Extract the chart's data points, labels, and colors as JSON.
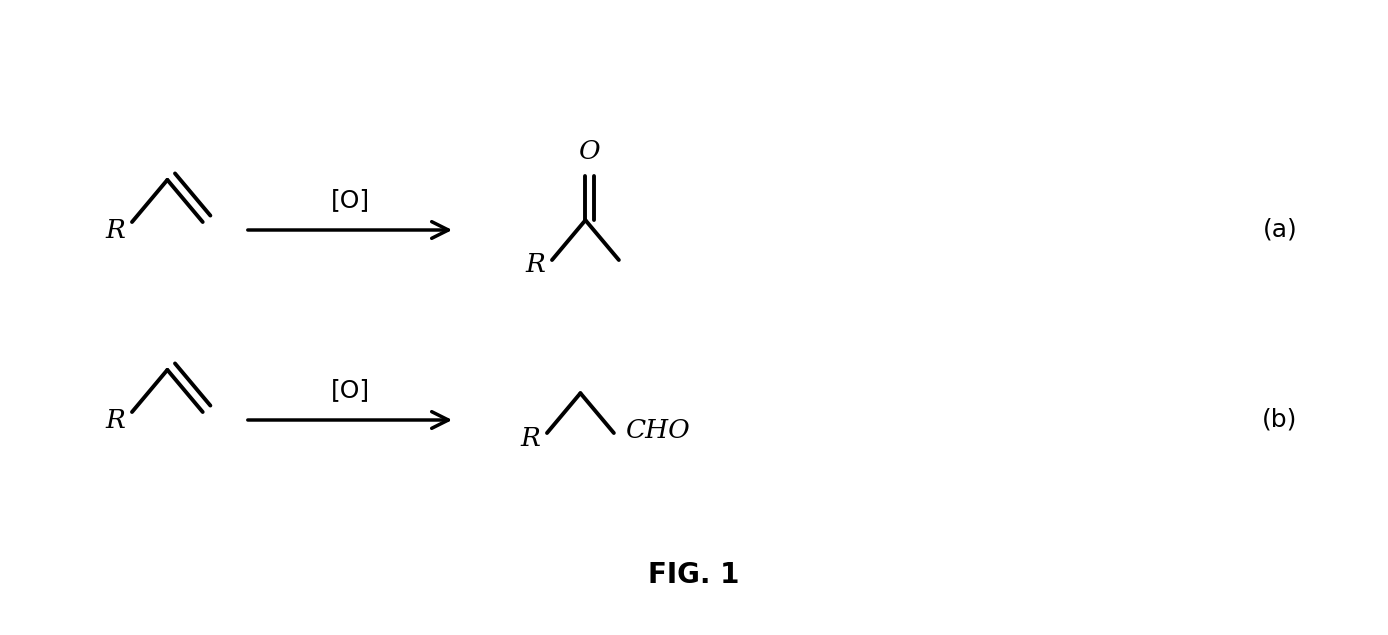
{
  "background_color": "#ffffff",
  "fig_width": 13.88,
  "fig_height": 6.35,
  "title": "FIG. 1",
  "label_a": "(a)",
  "label_b": "(b)",
  "arrow_label": "[O]"
}
